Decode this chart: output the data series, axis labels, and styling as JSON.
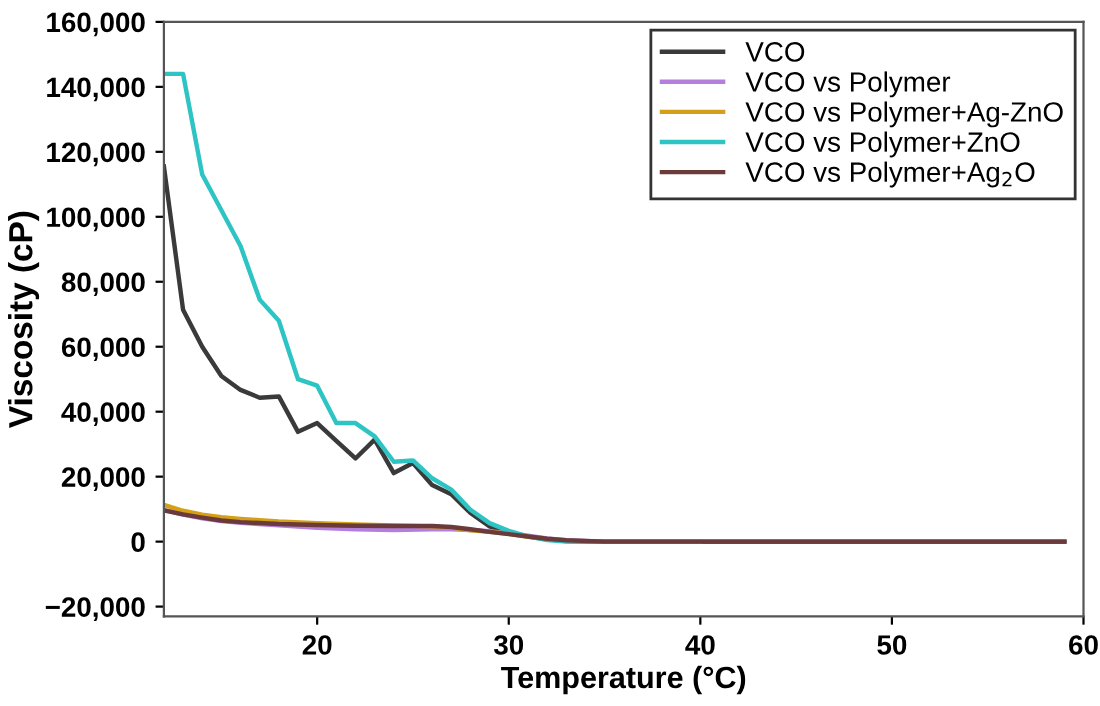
{
  "chart_data": {
    "type": "line",
    "xlabel": "Temperature (°C)",
    "ylabel": "Viscosity (cP)",
    "xlim": [
      12,
      60
    ],
    "xticks": [
      20,
      30,
      40,
      50,
      60
    ],
    "ylim": [
      -23000,
      160000
    ],
    "yticks": [
      {
        "value": -20000,
        "label": "−20,000"
      },
      {
        "value": 0,
        "label": "0"
      },
      {
        "value": 20000,
        "label": "20,000"
      },
      {
        "value": 40000,
        "label": "40,000"
      },
      {
        "value": 60000,
        "label": "60,000"
      },
      {
        "value": 80000,
        "label": "80,000"
      },
      {
        "value": 100000,
        "label": "100,000"
      },
      {
        "value": 120000,
        "label": "120,000"
      },
      {
        "value": 140000,
        "label": "140,000"
      },
      {
        "value": 160000,
        "label": "160,000"
      }
    ],
    "grid": false,
    "legend": "top right",
    "series": [
      {
        "name": "VCO",
        "color": "#3a3a3a",
        "x": [
          12,
          13,
          14,
          15,
          16,
          17,
          18,
          19,
          20,
          21,
          22,
          23,
          24,
          25,
          26,
          27,
          28,
          29,
          30,
          31,
          32,
          33,
          34,
          40,
          50,
          59
        ],
        "values": [
          115500,
          71400,
          60000,
          51000,
          46700,
          44300,
          44700,
          33800,
          36500,
          31000,
          25600,
          31400,
          21100,
          24200,
          17400,
          14600,
          8800,
          4700,
          2700,
          1600,
          700,
          200,
          0,
          0,
          0,
          0
        ]
      },
      {
        "name": "VCO vs Polymer",
        "color": "#b57edc",
        "x": [
          12,
          13,
          14,
          15,
          16,
          18,
          20,
          22,
          24,
          26,
          27,
          28,
          29,
          30,
          31,
          32,
          33,
          35,
          40
        ],
        "values": [
          9800,
          8300,
          7200,
          6300,
          5800,
          5000,
          4300,
          3800,
          3600,
          3800,
          3800,
          3600,
          3200,
          2600,
          1800,
          1000,
          400,
          0,
          0
        ]
      },
      {
        "name": "VCO vs Polymer+Ag-ZnO",
        "color": "#d4a017",
        "x": [
          12,
          13,
          14,
          15,
          16,
          17,
          18,
          20,
          22,
          24,
          26,
          27,
          28,
          29,
          30,
          31,
          32
        ],
        "values": [
          11300,
          9500,
          8300,
          7500,
          7000,
          6600,
          6200,
          5700,
          5300,
          5000,
          4700,
          4300,
          3500,
          3000,
          2400,
          1500,
          700
        ]
      },
      {
        "name": "VCO vs Polymer+ZnO",
        "color": "#2ec4c4",
        "x": [
          12,
          13,
          14,
          15,
          16,
          17,
          18,
          19,
          20,
          21,
          22,
          23,
          24,
          25,
          26,
          27,
          28,
          29,
          30,
          31,
          32,
          33,
          40
        ],
        "values": [
          144000,
          144000,
          113000,
          102000,
          91000,
          74500,
          68000,
          50000,
          48000,
          36500,
          36500,
          32400,
          24600,
          25000,
          19500,
          16000,
          9800,
          5700,
          3300,
          1600,
          500,
          0,
          0
        ]
      },
      {
        "name": "VCO vs Polymer+Ag$_{2}$O",
        "color": "#6b3a3a",
        "x": [
          12,
          13,
          14,
          15,
          16,
          18,
          20,
          22,
          24,
          26,
          27,
          28,
          29,
          30,
          31,
          32,
          33,
          35,
          40,
          50,
          59
        ],
        "values": [
          9600,
          8400,
          7400,
          6500,
          6000,
          5400,
          5100,
          4900,
          4800,
          4800,
          4500,
          3800,
          3000,
          2300,
          1600,
          900,
          400,
          0,
          0,
          0,
          0
        ]
      }
    ]
  }
}
